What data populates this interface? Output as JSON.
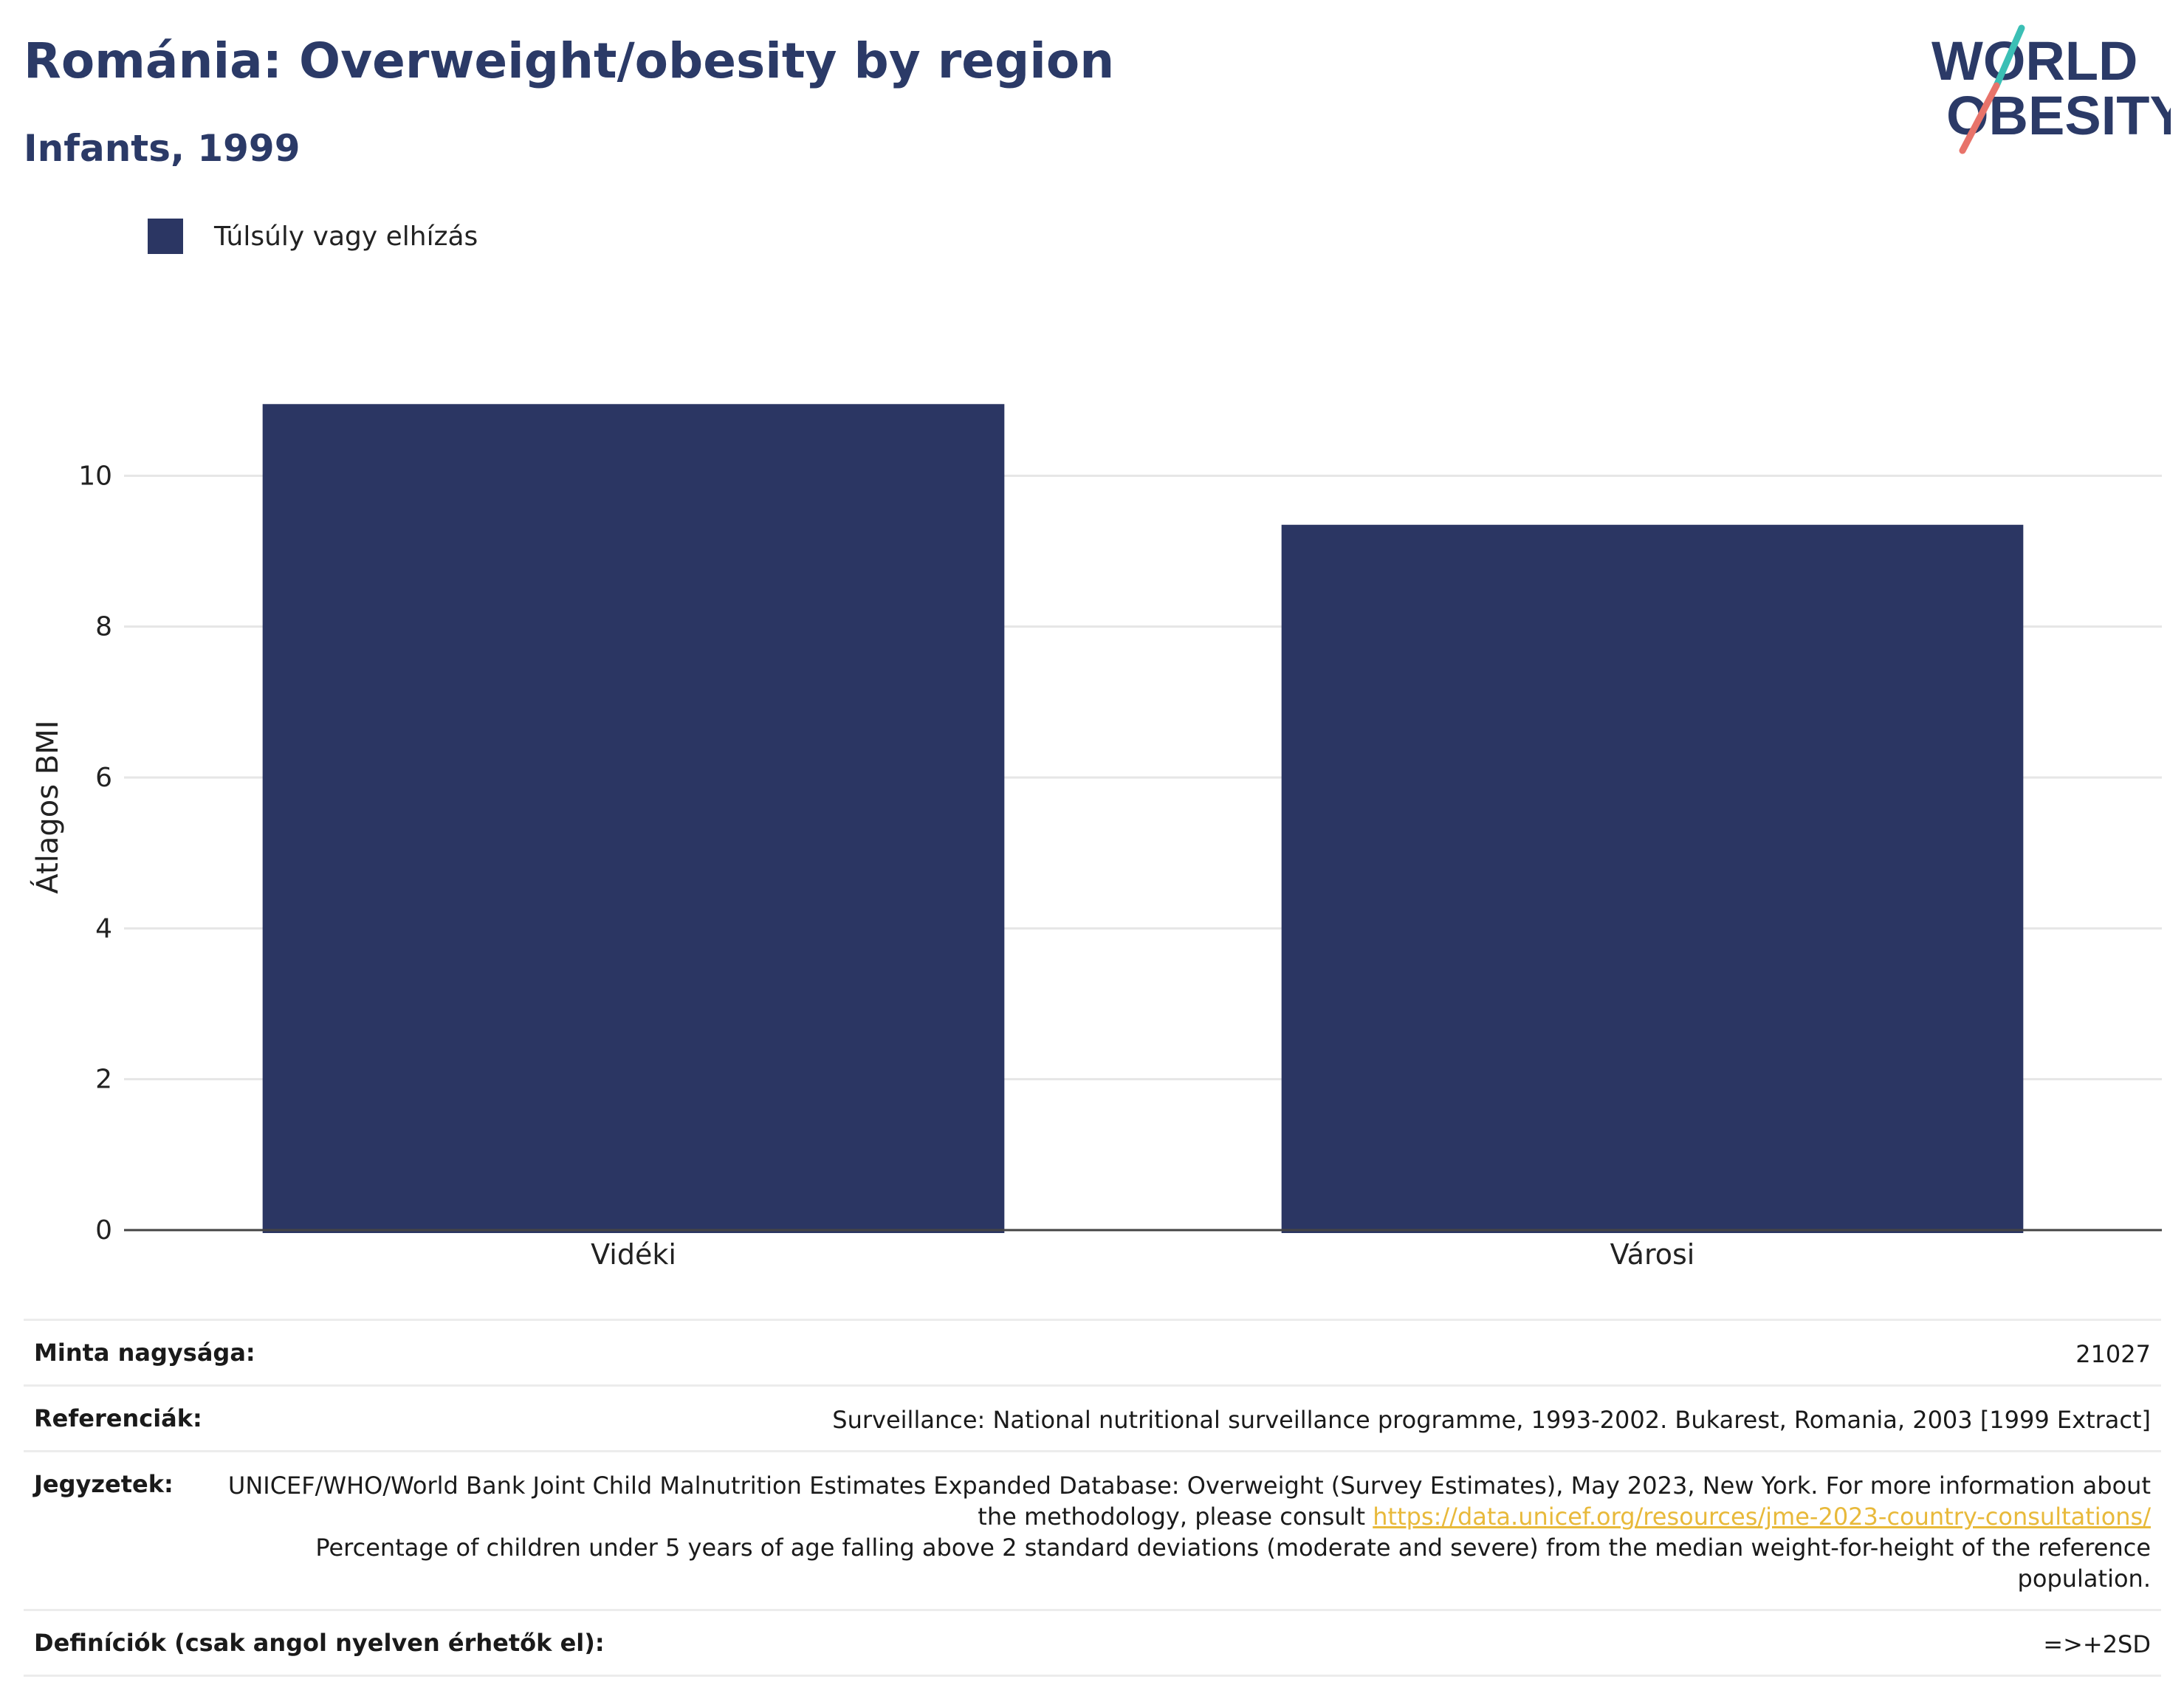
{
  "header": {
    "title": "Románia: Overweight/obesity by region",
    "subtitle": "Infants, 1999"
  },
  "logo": {
    "line1": "WORLD",
    "line2": "OBESITY"
  },
  "colors": {
    "bar": "#2b3663",
    "title": "#2b3a67",
    "accent_teal": "#3bbfb5",
    "accent_coral": "#e8736a",
    "link": "#e8b93a"
  },
  "chart_data": {
    "type": "bar",
    "title": "Románia: Overweight/obesity by region",
    "subtitle": "Infants, 1999",
    "categories": [
      "Vidéki",
      "Városi"
    ],
    "series": [
      {
        "name": "Túlsúly vagy elhízás",
        "values": [
          10.95,
          9.35
        ]
      }
    ],
    "xlabel": "",
    "ylabel": "Átlagos BMI",
    "ylim": [
      0,
      12
    ],
    "yticks": [
      0,
      2,
      4,
      6,
      8,
      10
    ],
    "grid": true,
    "legend": "top-left"
  },
  "info": {
    "sample_label": "Minta nagysága:",
    "sample_value": "21027",
    "references_label": "Referenciák:",
    "references_value": "Surveillance: National nutritional surveillance programme, 1993-2002. Bukarest, Romania, 2003 [1999 Extract]",
    "notes_label": "Jegyzetek:",
    "notes_text1": "UNICEF/WHO/World Bank Joint Child Malnutrition Estimates Expanded Database: Overweight (Survey Estimates), May 2023, New York. For more information about the methodology, please consult",
    "notes_link": "https://data.unicef.org/resources/jme-2023-country-consultations/",
    "notes_text2": "Percentage of children under 5 years of age falling above 2 standard deviations (moderate and severe) from the median weight-for-height of the reference population.",
    "definitions_label": "Definíciók (csak angol nyelven érhetők el):",
    "definitions_value": "=>+2SD"
  }
}
